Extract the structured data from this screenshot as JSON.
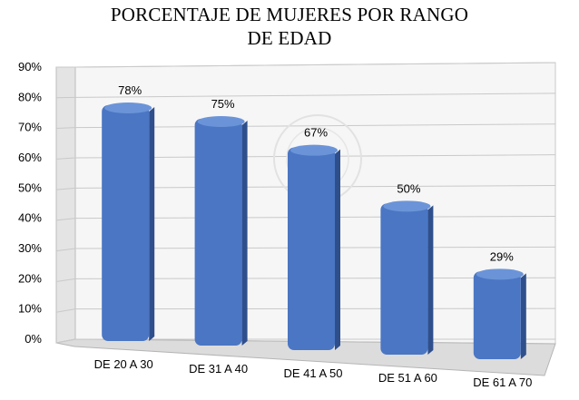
{
  "chart_data": {
    "type": "bar",
    "title_lines": [
      "PORCENTAJE DE MUJERES POR RANGO",
      "DE EDAD"
    ],
    "categories": [
      "DE 20 A 30",
      "DE 31 A 40",
      "DE 41 A 50",
      "DE 51 A 60",
      "DE 61 A 70"
    ],
    "values": [
      78,
      75,
      67,
      50,
      29
    ],
    "value_labels": [
      "78%",
      "75%",
      "67%",
      "50%",
      "29%"
    ],
    "yticks": [
      "0%",
      "10%",
      "20%",
      "30%",
      "40%",
      "50%",
      "60%",
      "70%",
      "80%",
      "90%"
    ],
    "ylim": [
      0,
      90
    ],
    "grid": true,
    "xlabel": "",
    "ylabel": "",
    "colors": {
      "bar_front": "#4a76c4",
      "bar_side": "#2f4f8c",
      "bar_top": "#6b94d8"
    }
  }
}
